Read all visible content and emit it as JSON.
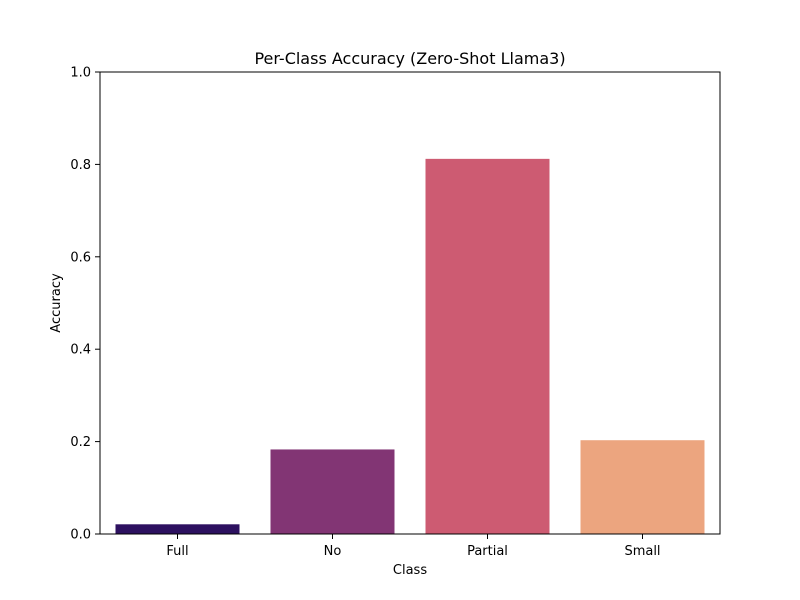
{
  "chart_data": {
    "type": "bar",
    "title": "Per-Class Accuracy (Zero-Shot Llama3)",
    "xlabel": "Class",
    "ylabel": "Accuracy",
    "categories": [
      "Full",
      "No",
      "Partial",
      "Small"
    ],
    "values": [
      0.021,
      0.183,
      0.812,
      0.203
    ],
    "colors": [
      "#2d1160",
      "#823574",
      "#cd5b72",
      "#eca57f"
    ],
    "ylim": [
      0,
      1.0
    ],
    "yticks": [
      "0.0",
      "0.2",
      "0.4",
      "0.6",
      "0.8",
      "1.0"
    ],
    "ytick_values": [
      0,
      0.2,
      0.4,
      0.6,
      0.8,
      1.0
    ],
    "grid": false,
    "legend": "none"
  }
}
